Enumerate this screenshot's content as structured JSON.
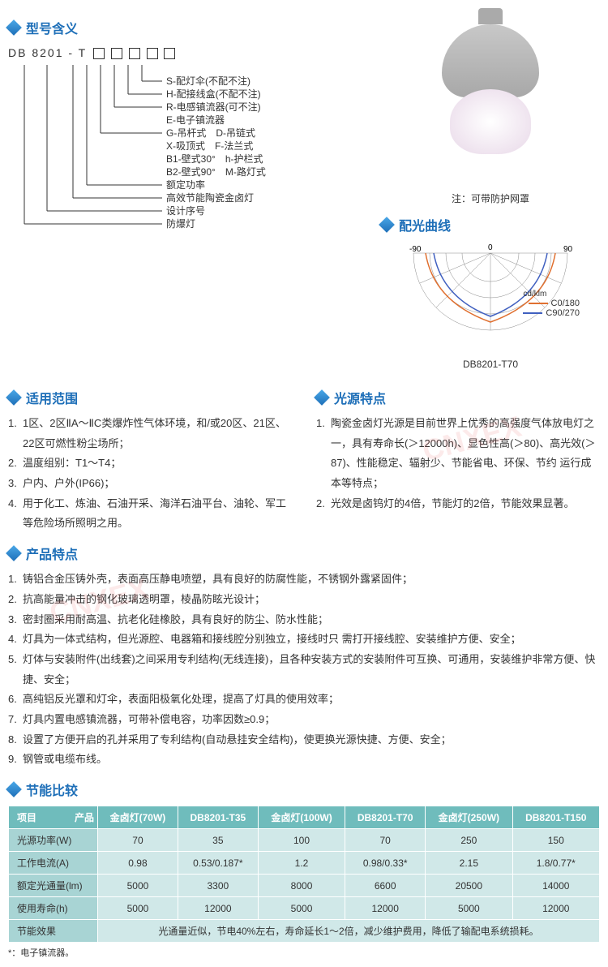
{
  "sections": {
    "model_meaning": "型号含义",
    "light_curve": "配光曲线",
    "scope": "适用范围",
    "light_feature": "光源特点",
    "product_feature": "产品特点",
    "energy_compare": "节能比较"
  },
  "model": {
    "prefix": "DB 8201 - T",
    "lines": [
      "S-配灯伞(不配不注)",
      "H-配接线盒(不配不注)",
      "R-电感镇流器(可不注)",
      "E-电子镇流器",
      "G-吊杆式　D-吊链式",
      "X-吸顶式　F-法兰式",
      "B1-壁式30°　h-护栏式",
      "B2-壁式90°　M-路灯式",
      "额定功率",
      "高效节能陶瓷金卤灯",
      "设计序号",
      "防爆灯"
    ]
  },
  "image_note": "注：可带防护网罩",
  "polar": {
    "labels_top": [
      "-90",
      "0",
      "90"
    ],
    "unit": "cd/klm",
    "legend": [
      {
        "color": "#e07030",
        "label": "C0/180"
      },
      {
        "color": "#4060c0",
        "label": "C90/270"
      }
    ],
    "model_label": "DB8201-T70"
  },
  "scope_items": [
    "1区、2区ⅡA～ⅡC类爆炸性气体环境，和/或20区、21区、22区可燃性粉尘场所；",
    "温度组别：T1～T4；",
    "户内、户外(IP66)；",
    "用于化工、炼油、石油开采、海洋石油平台、油轮、军工等危险场所照明之用。"
  ],
  "light_feature_items": [
    "陶瓷金卤灯光源是目前世界上优秀的高强度气体放电灯之一，具有寿命长(＞12000h)、显色性高(＞80)、高光效(＞87)、性能稳定、辐射少、节能省电、环保、节约 运行成本等特点；",
    "光效是卤钨灯的4倍，节能灯的2倍，节能效果显著。"
  ],
  "product_feature_items": [
    "铸铝合金压铸外壳，表面高压静电喷塑，具有良好的防腐性能，不锈钢外露紧固件；",
    "抗高能量冲击的钢化玻璃透明罩，棱晶防眩光设计；",
    "密封圈采用耐高温、抗老化硅橡胶，具有良好的防尘、防水性能；",
    "灯具为一体式结构，但光源腔、电器箱和接线腔分别独立，接线时只 需打开接线腔、安装维护方便、安全；",
    "灯体与安装附件(出线套)之间采用专利结构(无线连接)，且各种安装方式的安装附件可互换、可通用，安装维护非常方便、快捷、安全；",
    "高纯铝反光罩和灯伞，表面阳极氧化处理，提高了灯具的使用效率；",
    "灯具内置电感镇流器，可带补偿电容，功率因数≥0.9；",
    "设置了方便开启的孔并采用了专利结构(自动悬挂安全结构)，使更换光源快捷、方便、安全；",
    "钢管或电缆布线。"
  ],
  "table": {
    "header_left": "项目",
    "header_right": "产品",
    "columns": [
      "金卤灯(70W)",
      "DB8201-T35",
      "金卤灯(100W)",
      "DB8201-T70",
      "金卤灯(250W)",
      "DB8201-T150"
    ],
    "rows": [
      {
        "label": "光源功率(W)",
        "cells": [
          "70",
          "35",
          "100",
          "70",
          "250",
          "150"
        ]
      },
      {
        "label": "工作电流(A)",
        "cells": [
          "0.98",
          "0.53/0.187*",
          "1.2",
          "0.98/0.33*",
          "2.15",
          "1.8/0.77*"
        ]
      },
      {
        "label": "额定光通量(lm)",
        "cells": [
          "5000",
          "3300",
          "8000",
          "6600",
          "20500",
          "14000"
        ]
      },
      {
        "label": "使用寿命(h)",
        "cells": [
          "5000",
          "12000",
          "5000",
          "12000",
          "5000",
          "12000"
        ]
      }
    ],
    "summary_label": "节能效果",
    "summary_text": "光通量近似，节电40%左右，寿命延长1～2倍，减少维护费用，降低了输配电系统损耗。"
  },
  "footnote": "*：电子镇流器。",
  "watermark": "CNXEX"
}
